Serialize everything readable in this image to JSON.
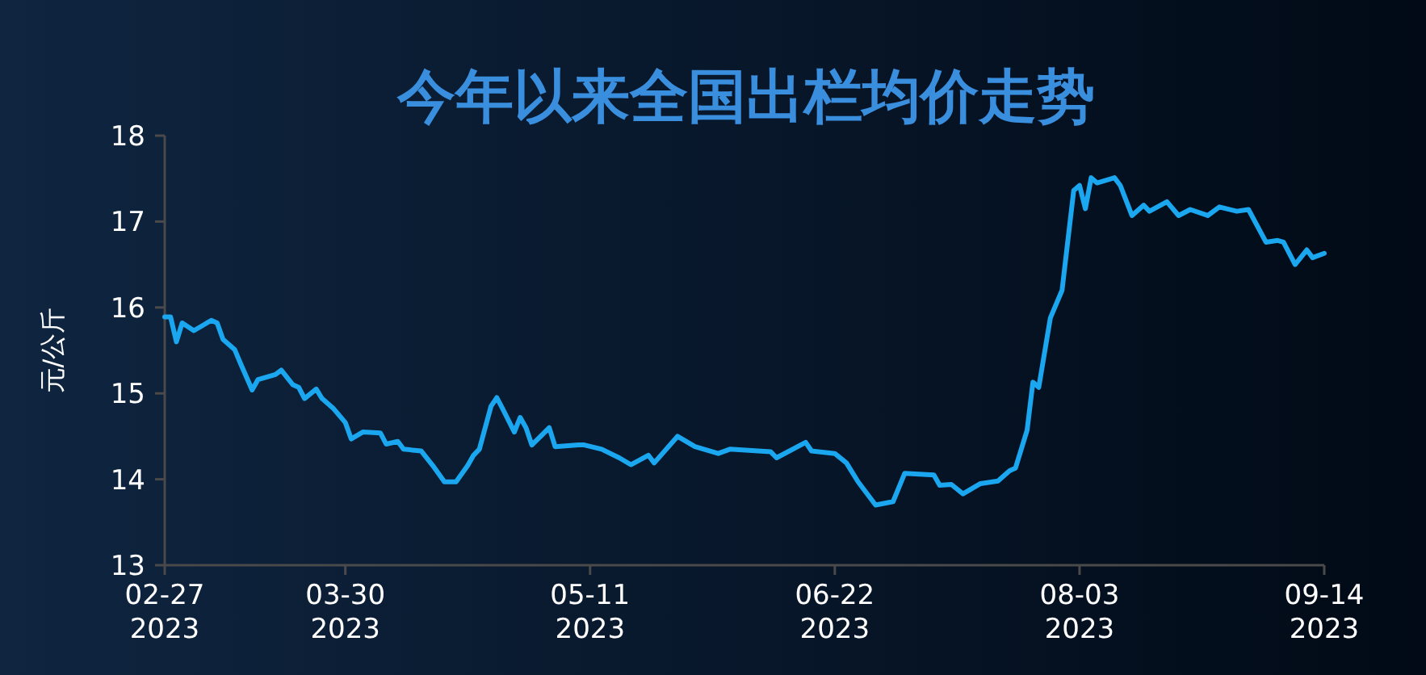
{
  "chart_data": {
    "type": "line",
    "title": "今年以来全国出栏均价走势",
    "ylabel": "元/公斤",
    "x": [
      "2023-02-27",
      "2023-02-28",
      "2023-03-01",
      "2023-03-02",
      "2023-03-04",
      "2023-03-07",
      "2023-03-08",
      "2023-03-09",
      "2023-03-11",
      "2023-03-12",
      "2023-03-14",
      "2023-03-15",
      "2023-03-18",
      "2023-03-19",
      "2023-03-21",
      "2023-03-22",
      "2023-03-23",
      "2023-03-25",
      "2023-03-26",
      "2023-03-28",
      "2023-03-30",
      "2023-03-31",
      "2023-04-02",
      "2023-04-05",
      "2023-04-06",
      "2023-04-08",
      "2023-04-09",
      "2023-04-12",
      "2023-04-14",
      "2023-04-16",
      "2023-04-18",
      "2023-04-20",
      "2023-04-21",
      "2023-04-22",
      "2023-04-24",
      "2023-04-25",
      "2023-04-26",
      "2023-04-28",
      "2023-04-29",
      "2023-04-30",
      "2023-05-01",
      "2023-05-04",
      "2023-05-05",
      "2023-05-09",
      "2023-05-10",
      "2023-05-13",
      "2023-05-16",
      "2023-05-18",
      "2023-05-21",
      "2023-05-22",
      "2023-05-26",
      "2023-05-29",
      "2023-06-02",
      "2023-06-04",
      "2023-06-11",
      "2023-06-12",
      "2023-06-17",
      "2023-06-18",
      "2023-06-22",
      "2023-06-24",
      "2023-06-26",
      "2023-06-29",
      "2023-07-02",
      "2023-07-04",
      "2023-07-09",
      "2023-07-10",
      "2023-07-12",
      "2023-07-14",
      "2023-07-17",
      "2023-07-20",
      "2023-07-22",
      "2023-07-23",
      "2023-07-25",
      "2023-07-26",
      "2023-07-27",
      "2023-07-29",
      "2023-07-31",
      "2023-08-02",
      "2023-08-03",
      "2023-08-04",
      "2023-08-05",
      "2023-08-06",
      "2023-08-09",
      "2023-08-10",
      "2023-08-12",
      "2023-08-14",
      "2023-08-15",
      "2023-08-18",
      "2023-08-20",
      "2023-08-22",
      "2023-08-25",
      "2023-08-27",
      "2023-08-30",
      "2023-09-01",
      "2023-09-04",
      "2023-09-06",
      "2023-09-07",
      "2023-09-09",
      "2023-09-11",
      "2023-09-12",
      "2023-09-14"
    ],
    "series": [
      {
        "color": "#1aa7f0",
        "values": [
          15.89,
          15.89,
          15.6,
          15.82,
          15.73,
          15.85,
          15.82,
          15.63,
          15.51,
          15.35,
          15.04,
          15.16,
          15.22,
          15.27,
          15.1,
          15.07,
          14.94,
          15.05,
          14.94,
          14.82,
          14.66,
          14.47,
          14.55,
          14.54,
          14.41,
          14.44,
          14.35,
          14.33,
          14.16,
          13.97,
          13.97,
          14.16,
          14.28,
          14.35,
          14.85,
          14.95,
          14.82,
          14.55,
          14.72,
          14.6,
          14.4,
          14.6,
          14.38,
          14.4,
          14.4,
          14.35,
          14.25,
          14.17,
          14.28,
          14.19,
          14.5,
          14.38,
          14.3,
          14.35,
          14.32,
          14.25,
          14.43,
          14.33,
          14.3,
          14.19,
          13.97,
          13.7,
          13.74,
          14.07,
          14.05,
          13.93,
          13.94,
          13.83,
          13.95,
          13.98,
          14.1,
          14.13,
          14.57,
          15.13,
          15.07,
          15.88,
          16.2,
          17.36,
          17.42,
          17.15,
          17.51,
          17.45,
          17.51,
          17.42,
          17.07,
          17.19,
          17.12,
          17.23,
          17.07,
          17.14,
          17.07,
          17.17,
          17.12,
          17.14,
          16.76,
          16.78,
          16.76,
          16.5,
          16.67,
          16.58,
          16.63
        ]
      }
    ],
    "xlim": [
      "2023-02-27",
      "2023-09-14"
    ],
    "xticks": [
      {
        "value": "2023-02-27",
        "label": "02-27\n2023"
      },
      {
        "value": "2023-03-30",
        "label": "03-30\n2023"
      },
      {
        "value": "2023-05-11",
        "label": "05-11\n2023"
      },
      {
        "value": "2023-06-22",
        "label": "06-22\n2023"
      },
      {
        "value": "2023-08-03",
        "label": "08-03\n2023"
      },
      {
        "value": "2023-09-14",
        "label": "09-14\n2023"
      }
    ],
    "ylim": [
      13,
      18
    ],
    "yticks": [
      13,
      14,
      15,
      16,
      17,
      18
    ],
    "grid": false,
    "marker": "none",
    "line_style": "solid"
  }
}
